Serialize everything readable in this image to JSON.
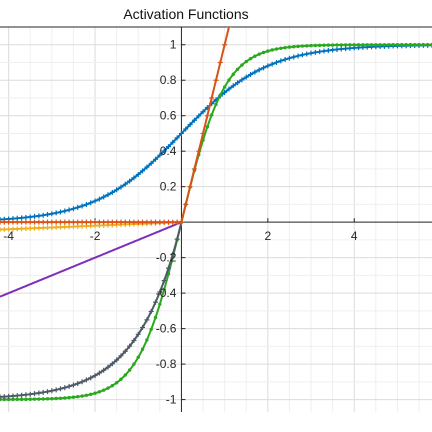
{
  "chart_data": {
    "type": "line",
    "title": "Activation Functions",
    "xlim": [
      -4.2,
      5.8
    ],
    "ylim": [
      -1.07,
      1.1
    ],
    "grid": true,
    "x_ticks": [
      -4,
      -2,
      2,
      4
    ],
    "x_tick_labels": [
      "-4",
      "-2",
      "2",
      "4"
    ],
    "y_ticks": [
      1,
      0.8,
      0.6,
      0.4,
      0.2,
      -0.2,
      -0.4,
      -0.6,
      -0.8,
      -1
    ],
    "y_tick_labels": [
      "1",
      "0.8",
      "0.6",
      "0.4",
      "0.2",
      "-0.2",
      "-0.4",
      "-0.6",
      "-0.8",
      "-1"
    ],
    "series": [
      {
        "color": "#0072bd",
        "function": "sigmoid",
        "marker": "plus",
        "range": [
          -4.2,
          5.8
        ]
      },
      {
        "color": "#2aa81e",
        "function": "tanh",
        "marker": "dot",
        "range": [
          -4.2,
          5.8
        ]
      },
      {
        "color": "#4d5a66",
        "function": "elu",
        "marker": "plus",
        "range": [
          -4.2,
          0
        ]
      },
      {
        "color": "#7e2fb8",
        "function": "leaky",
        "slope": 0.1,
        "marker": "none",
        "range": [
          -4.2,
          0
        ]
      },
      {
        "color": "#edb120",
        "function": "leaky",
        "slope": 0.01,
        "marker": "plus",
        "range": [
          -4.2,
          0
        ]
      },
      {
        "color": "#d95319",
        "function": "relu",
        "marker": "plus",
        "range": [
          -4.2,
          1.15
        ]
      }
    ]
  }
}
